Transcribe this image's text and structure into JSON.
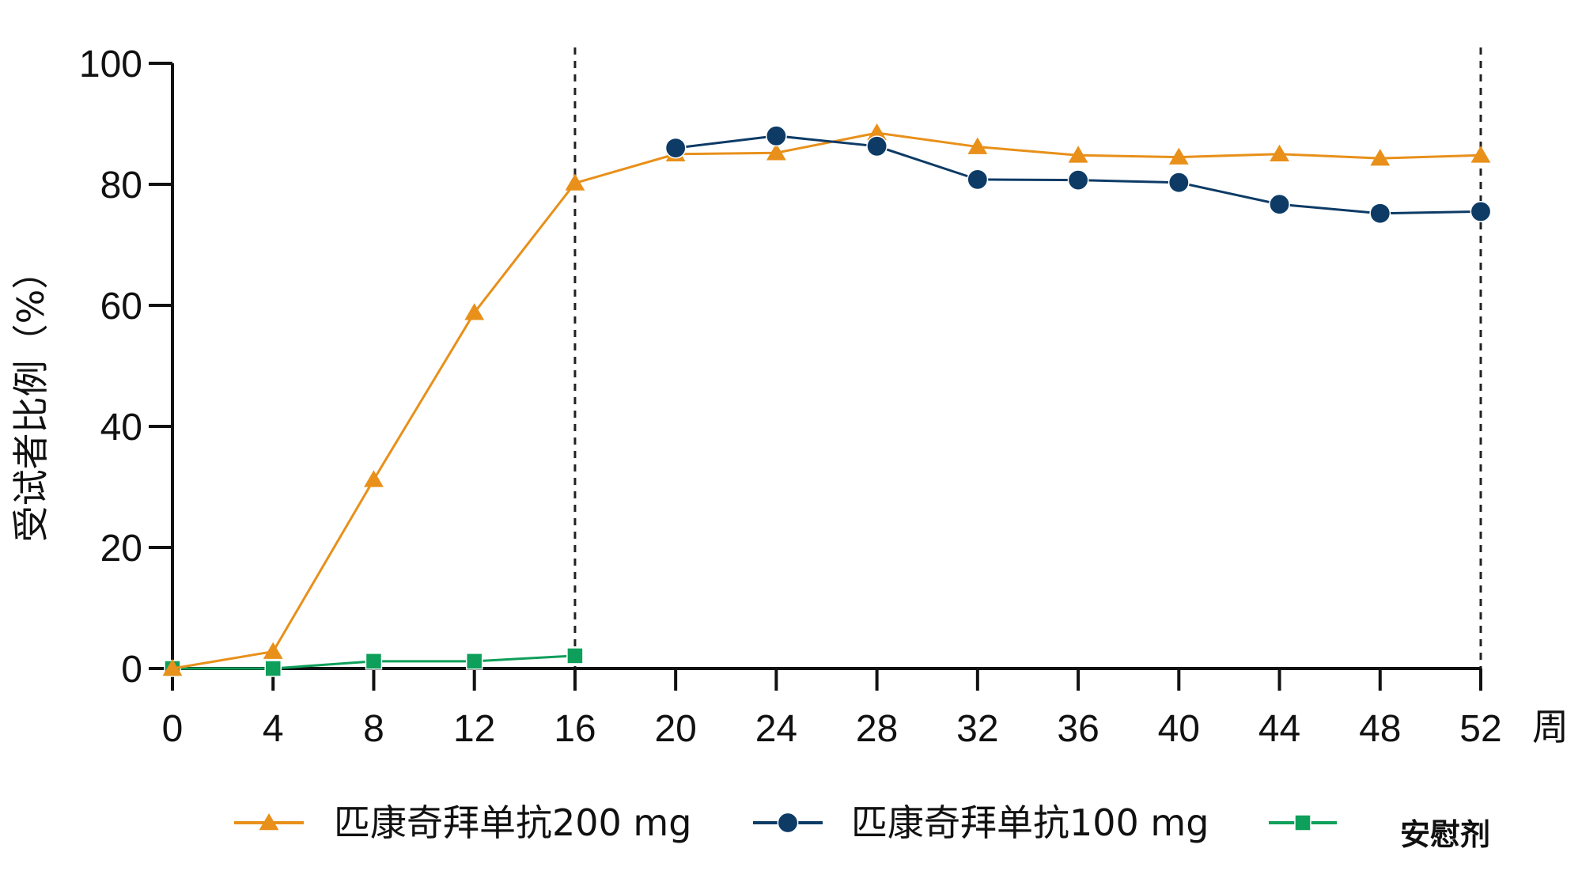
{
  "chart_data": {
    "type": "line",
    "x": [
      0,
      4,
      8,
      12,
      16,
      20,
      24,
      28,
      32,
      36,
      40,
      44,
      48,
      52
    ],
    "x_ticks": [
      0,
      4,
      8,
      12,
      16,
      20,
      24,
      28,
      32,
      36,
      40,
      44,
      48,
      52
    ],
    "y_ticks": [
      0,
      20,
      40,
      60,
      80,
      100
    ],
    "xlim": [
      0,
      52
    ],
    "ylim": [
      0,
      100
    ],
    "xlabel": "周",
    "ylabel": "受试者比例（%）",
    "reference_lines_x": [
      16,
      52
    ],
    "series": [
      {
        "name": "匹康奇拜单抗200 mg",
        "color": "#E8901A",
        "marker": "triangle",
        "points": [
          [
            0,
            0
          ],
          [
            4,
            2.8
          ],
          [
            8,
            31.2
          ],
          [
            12,
            58.8
          ],
          [
            16,
            80.2
          ],
          [
            20,
            85.0
          ],
          [
            24,
            85.2
          ],
          [
            28,
            88.5
          ],
          [
            32,
            86.2
          ],
          [
            36,
            84.8
          ],
          [
            40,
            84.5
          ],
          [
            44,
            85.0
          ],
          [
            48,
            84.3
          ],
          [
            52,
            84.8
          ]
        ]
      },
      {
        "name": "匹康奇拜单抗100 mg",
        "color": "#0D3B66",
        "marker": "circle",
        "points": [
          [
            20,
            86.0
          ],
          [
            24,
            88.0
          ],
          [
            28,
            86.3
          ],
          [
            32,
            80.8
          ],
          [
            36,
            80.7
          ],
          [
            40,
            80.3
          ],
          [
            44,
            76.7
          ],
          [
            48,
            75.2
          ],
          [
            52,
            75.5
          ]
        ]
      },
      {
        "name": "安慰剂",
        "color": "#0E9F5A",
        "marker": "square",
        "points": [
          [
            0,
            0
          ],
          [
            4,
            0
          ],
          [
            8,
            1.2
          ],
          [
            12,
            1.2
          ],
          [
            16,
            2.1
          ]
        ]
      }
    ]
  }
}
